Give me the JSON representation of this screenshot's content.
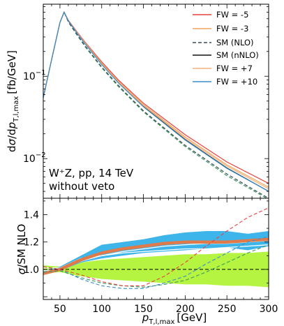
{
  "chart_data": {
    "type": "line",
    "x_range": [
      30,
      300
    ],
    "x_ticks": [
      50,
      100,
      150,
      200,
      250,
      300
    ],
    "xlabel_main": "p",
    "xlabel_sub": "T,l,max",
    "xlabel_unit": "[GeV]",
    "top": {
      "ylabel": "dσ/dp_{T,l,max} [fb/GeV]",
      "ylabel_d": "d",
      "ylabel_sigma": "σ",
      "ylabel_slash": "/d",
      "ylabel_p": "p",
      "ylabel_sub": "T,l,max",
      "ylabel_unit": "[fb/GeV]",
      "yscale": "log",
      "ylim": [
        0.0033,
        0.75
      ],
      "y_ticks": [
        {
          "value": 0.1,
          "base": "10",
          "exp": "−1"
        },
        {
          "value": 0.01,
          "base": "10",
          "exp": "−2"
        }
      ],
      "annotation_line1": "W⁺Z, pp, 14 TeV",
      "annotation_line2": "without veto",
      "legend_position": "top-right",
      "x": [
        30,
        40,
        50,
        55,
        60,
        70,
        80,
        100,
        120,
        150,
        200,
        250,
        300
      ],
      "series": [
        {
          "name": "FW = -5",
          "color": "#e8413b",
          "dash": "solid",
          "width": 1.2,
          "values": [
            0.055,
            0.16,
            0.45,
            0.6,
            0.48,
            0.35,
            0.26,
            0.15,
            0.09,
            0.047,
            0.0195,
            0.0091,
            0.005
          ]
        },
        {
          "name": "FW = -3",
          "color": "#f5a35a",
          "dash": "solid",
          "width": 1.2,
          "values": [
            0.055,
            0.16,
            0.45,
            0.6,
            0.475,
            0.345,
            0.255,
            0.145,
            0.087,
            0.045,
            0.0183,
            0.0084,
            0.0045
          ]
        },
        {
          "name": "SM (NLO)",
          "color": "#3a4a5a",
          "dash": "dashed",
          "width": 1.2,
          "values": [
            0.055,
            0.16,
            0.45,
            0.6,
            0.46,
            0.325,
            0.235,
            0.13,
            0.077,
            0.038,
            0.0145,
            0.0065,
            0.0033
          ]
        },
        {
          "name": "SM (nNLO)",
          "color": "#111111",
          "dash": "solid",
          "width": 1.2,
          "values": [
            0.055,
            0.16,
            0.45,
            0.6,
            0.47,
            0.34,
            0.25,
            0.14,
            0.084,
            0.043,
            0.017,
            0.0077,
            0.004
          ]
        },
        {
          "name": "FW = +7",
          "color": "#f2b27a",
          "dash": "solid",
          "width": 1.2,
          "values": [
            0.055,
            0.16,
            0.45,
            0.6,
            0.472,
            0.342,
            0.252,
            0.142,
            0.085,
            0.044,
            0.0176,
            0.0081,
            0.0043
          ]
        },
        {
          "name": "FW = +10",
          "color": "#3a8ec9",
          "dash": "solid",
          "width": 1.2,
          "values": [
            0.055,
            0.16,
            0.45,
            0.6,
            0.47,
            0.338,
            0.248,
            0.139,
            0.083,
            0.0425,
            0.0168,
            0.0076,
            0.004
          ]
        }
      ],
      "extra_dashed": [
        {
          "color": "#3a9a5a",
          "values": [
            0.055,
            0.16,
            0.45,
            0.6,
            0.455,
            0.32,
            0.23,
            0.127,
            0.075,
            0.037,
            0.014,
            0.0062,
            0.0032
          ]
        }
      ]
    },
    "bottom": {
      "ylabel": "σ/SM NLO",
      "ylabel_sigma": "σ",
      "ylabel_rest": "/SM NLO",
      "ylim": [
        0.78,
        1.52
      ],
      "y_ticks": [
        1.0,
        1.2,
        1.4
      ],
      "x": [
        30,
        50,
        75,
        100,
        125,
        150,
        175,
        200,
        225,
        250,
        275,
        300
      ],
      "green_band": {
        "color": "#b5f542",
        "upper": [
          1.03,
          1.02,
          1.05,
          1.07,
          1.08,
          1.09,
          1.1,
          1.11,
          1.11,
          1.12,
          1.12,
          1.13
        ],
        "lower": [
          0.97,
          0.98,
          0.95,
          0.93,
          0.92,
          0.91,
          0.9,
          0.89,
          0.89,
          0.88,
          0.88,
          0.87
        ]
      },
      "blue_band": {
        "color": "#3db5ea",
        "upper": [
          0.99,
          1.02,
          1.1,
          1.18,
          1.2,
          1.22,
          1.25,
          1.27,
          1.28,
          1.28,
          1.26,
          1.28
        ],
        "lower": [
          0.96,
          0.99,
          1.05,
          1.08,
          1.1,
          1.12,
          1.13,
          1.14,
          1.15,
          1.16,
          1.14,
          1.17
        ]
      },
      "central": {
        "color": "#e07a4a",
        "values": [
          0.97,
          1.0,
          1.07,
          1.12,
          1.15,
          1.17,
          1.19,
          1.2,
          1.2,
          1.2,
          1.21,
          1.22
        ]
      },
      "ref_line": {
        "value": 1.0,
        "color": "#000000"
      },
      "red_dashed": {
        "color": "#e8413b",
        "values": [
          1.02,
          1.0,
          0.96,
          0.91,
          0.88,
          0.88,
          0.95,
          1.05,
          1.17,
          1.28,
          1.38,
          1.45
        ]
      },
      "blue_dashed": {
        "color": "#3a8ec9",
        "values": [
          1.02,
          1.0,
          0.93,
          0.88,
          0.86,
          0.86,
          0.9,
          0.95,
          1.04,
          1.12,
          1.2,
          1.24
        ]
      },
      "green_dashed": {
        "color": "#3a9a5a",
        "values": [
          0.98,
          0.99,
          0.94,
          0.9,
          0.88,
          0.87,
          0.89,
          0.92,
          0.98,
          1.05,
          1.12,
          1.18
        ]
      },
      "white_lines": [
        [
          1.01,
          1.01,
          1.08,
          1.1,
          1.12,
          1.13,
          1.14,
          1.15,
          1.15,
          1.16,
          1.17,
          1.18
        ],
        [
          0.99,
          1.0,
          1.06,
          1.1,
          1.13,
          1.15,
          1.17,
          1.18,
          1.19,
          1.19,
          1.2,
          1.21
        ]
      ]
    }
  }
}
